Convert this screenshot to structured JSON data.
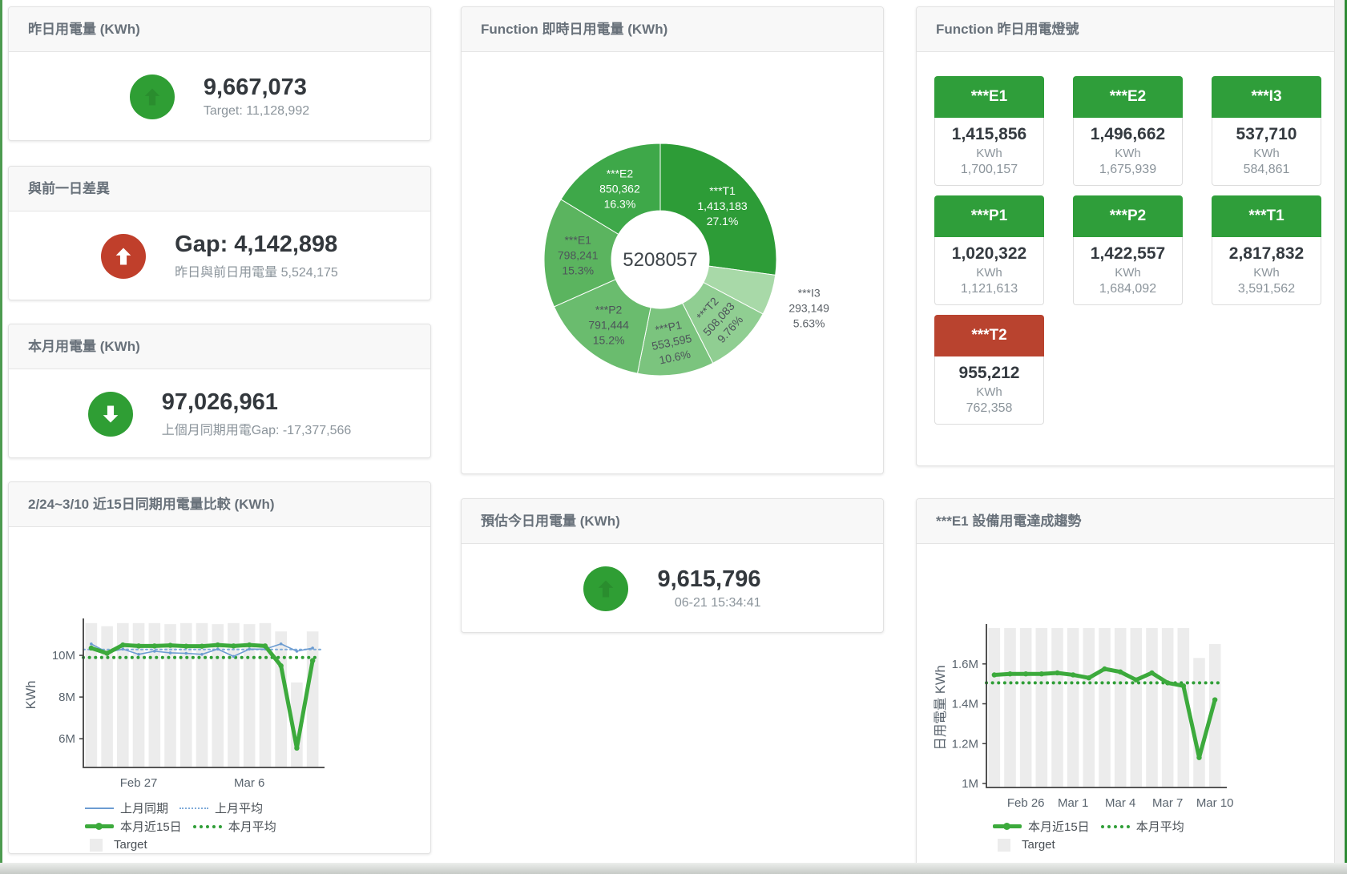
{
  "cards": {
    "yesterday": {
      "title": "昨日用電量 (KWh)",
      "value": "9,667,073",
      "sub": "Target: 11,128,992"
    },
    "gap": {
      "title": "與前一日差異",
      "value": "Gap: 4,142,898",
      "sub": "昨日與前日用電量 5,524,175"
    },
    "month": {
      "title": "本月用電量 (KWh)",
      "value": "97,026,961",
      "sub": "上個月同期用電Gap: -17,377,566"
    },
    "today": {
      "title": "預估今日用電量 (KWh)",
      "value": "9,615,796",
      "sub": "06-21 15:34:41"
    }
  },
  "lights": {
    "title": "Function 昨日用電燈號",
    "green": "#2F9E3A",
    "red": "#B9432F",
    "tiles": [
      {
        "label": "***E1",
        "value": "1,415,856",
        "unit": "KWh",
        "target": "1,700,157",
        "status": "green"
      },
      {
        "label": "***E2",
        "value": "1,496,662",
        "unit": "KWh",
        "target": "1,675,939",
        "status": "green"
      },
      {
        "label": "***I3",
        "value": "537,710",
        "unit": "KWh",
        "target": "584,861",
        "status": "green"
      },
      {
        "label": "***P1",
        "value": "1,020,322",
        "unit": "KWh",
        "target": "1,121,613",
        "status": "green"
      },
      {
        "label": "***P2",
        "value": "1,422,557",
        "unit": "KWh",
        "target": "1,684,092",
        "status": "green"
      },
      {
        "label": "***T1",
        "value": "2,817,832",
        "unit": "KWh",
        "target": "3,591,562",
        "status": "green"
      },
      {
        "label": "***T2",
        "value": "955,212",
        "unit": "KWh",
        "target": "762,358",
        "status": "red"
      }
    ]
  },
  "chart_data": [
    {
      "type": "pie",
      "title": "Function 即時日用電量 (KWh)",
      "center_total": "5208057",
      "slices": [
        {
          "name": "***T1",
          "value": 1413183,
          "display": "1,413,183",
          "pct": "27.1%",
          "color": "#2D9C37",
          "text": "#FFFFFF",
          "rot": 0,
          "outside": false
        },
        {
          "name": "***I3",
          "value": 293149,
          "display": "293,149",
          "pct": "5.63%",
          "color": "#A8D9A8",
          "text": "#5B6167",
          "rot": 0,
          "outside": true
        },
        {
          "name": "***T2",
          "value": 508083,
          "display": "508,083",
          "pct": "9.76%",
          "color": "#90CE92",
          "text": "#4D545A",
          "rot": -48,
          "outside": false
        },
        {
          "name": "***P1",
          "value": 553595,
          "display": "553,595",
          "pct": "10.6%",
          "color": "#7BC47E",
          "text": "#4D545A",
          "rot": -12,
          "outside": false
        },
        {
          "name": "***P2",
          "value": 791444,
          "display": "791,444",
          "pct": "15.2%",
          "color": "#6ABC6E",
          "text": "#4D545A",
          "rot": 0,
          "outside": false
        },
        {
          "name": "***E1",
          "value": 798241,
          "display": "798,241",
          "pct": "15.3%",
          "color": "#5BB45F",
          "text": "#4D545A",
          "rot": 0,
          "outside": false
        },
        {
          "name": "***E2",
          "value": 850362,
          "display": "850,362",
          "pct": "16.3%",
          "color": "#3EA849",
          "text": "#FFFFFF",
          "rot": 0,
          "outside": false
        }
      ]
    },
    {
      "type": "line",
      "title": "2/24~3/10 近15日同期用電量比較 (KWh)",
      "ylabel": "KWh",
      "ylim": [
        4.62,
        11.58
      ],
      "yticks": [
        {
          "v": 6,
          "label": "6M"
        },
        {
          "v": 8,
          "label": "8M"
        },
        {
          "v": 10,
          "label": "10M"
        }
      ],
      "xticks": [
        {
          "i": 3,
          "label": "Feb 27"
        },
        {
          "i": 10,
          "label": "Mar 6"
        }
      ],
      "bar_color": "#ECECEC",
      "target_bars": [
        11.55,
        11.4,
        11.55,
        11.55,
        11.55,
        11.5,
        11.55,
        11.55,
        11.5,
        11.55,
        11.5,
        11.55,
        11.15,
        8.7,
        11.15
      ],
      "series": [
        {
          "name": "上月同期",
          "type": "thin",
          "color": "#6C9CD1",
          "values": [
            10.55,
            10.15,
            10.3,
            10.05,
            10.2,
            10.12,
            10.1,
            10.05,
            10.3,
            9.95,
            10.3,
            10.3,
            10.55,
            10.2,
            10.35
          ]
        },
        {
          "name": "本月近15日",
          "type": "thick",
          "color": "#3CAA3C",
          "values": [
            10.35,
            10.1,
            10.5,
            10.45,
            10.45,
            10.48,
            10.44,
            10.44,
            10.5,
            10.45,
            10.5,
            10.45,
            9.5,
            5.55,
            9.75
          ]
        }
      ],
      "avg_lines": [
        {
          "name": "上月平均",
          "color": "#7FABD9",
          "value": 10.28,
          "style": "fine"
        },
        {
          "name": "本月平均",
          "color": "#2F9E37",
          "value": 9.9,
          "style": "bold"
        }
      ],
      "legend": [
        {
          "label": "上月同期",
          "swatch": "line-blue"
        },
        {
          "label": "上月平均",
          "swatch": "dots-blue"
        },
        {
          "label": "本月近15日",
          "swatch": "line-green"
        },
        {
          "label": "本月平均",
          "swatch": "dots-green"
        },
        {
          "label": "Target",
          "swatch": "square"
        }
      ]
    },
    {
      "type": "line",
      "title": "***E1 設備用電達成趨勢",
      "ylabel": "日用電量 KWh",
      "ylim": [
        0.98,
        1.78
      ],
      "yticks": [
        {
          "v": 1,
          "label": "1M"
        },
        {
          "v": 1.2,
          "label": "1.2M"
        },
        {
          "v": 1.4,
          "label": "1.4M"
        },
        {
          "v": 1.6,
          "label": "1.6M"
        }
      ],
      "xticks": [
        {
          "i": 2,
          "label": "Feb 26"
        },
        {
          "i": 5,
          "label": "Mar 1"
        },
        {
          "i": 8,
          "label": "Mar 4"
        },
        {
          "i": 11,
          "label": "Mar 7"
        },
        {
          "i": 14,
          "label": "Mar 10"
        }
      ],
      "bar_color": "#ECECEC",
      "target_bars": [
        1.78,
        1.78,
        1.78,
        1.78,
        1.78,
        1.78,
        1.78,
        1.78,
        1.78,
        1.78,
        1.78,
        1.78,
        1.78,
        1.63,
        1.7
      ],
      "series": [
        {
          "name": "本月近15日",
          "type": "thick",
          "color": "#3CAA3C",
          "values": [
            1.545,
            1.55,
            1.55,
            1.55,
            1.555,
            1.545,
            1.53,
            1.575,
            1.56,
            1.52,
            1.555,
            1.505,
            1.49,
            1.13,
            1.42
          ]
        }
      ],
      "avg_lines": [
        {
          "name": "本月平均",
          "color": "#2F9E37",
          "value": 1.505,
          "style": "bold"
        }
      ],
      "legend": [
        {
          "label": "本月近15日",
          "swatch": "line-green"
        },
        {
          "label": "本月平均",
          "swatch": "dots-green"
        },
        {
          "label": "Target",
          "swatch": "square"
        }
      ]
    }
  ]
}
